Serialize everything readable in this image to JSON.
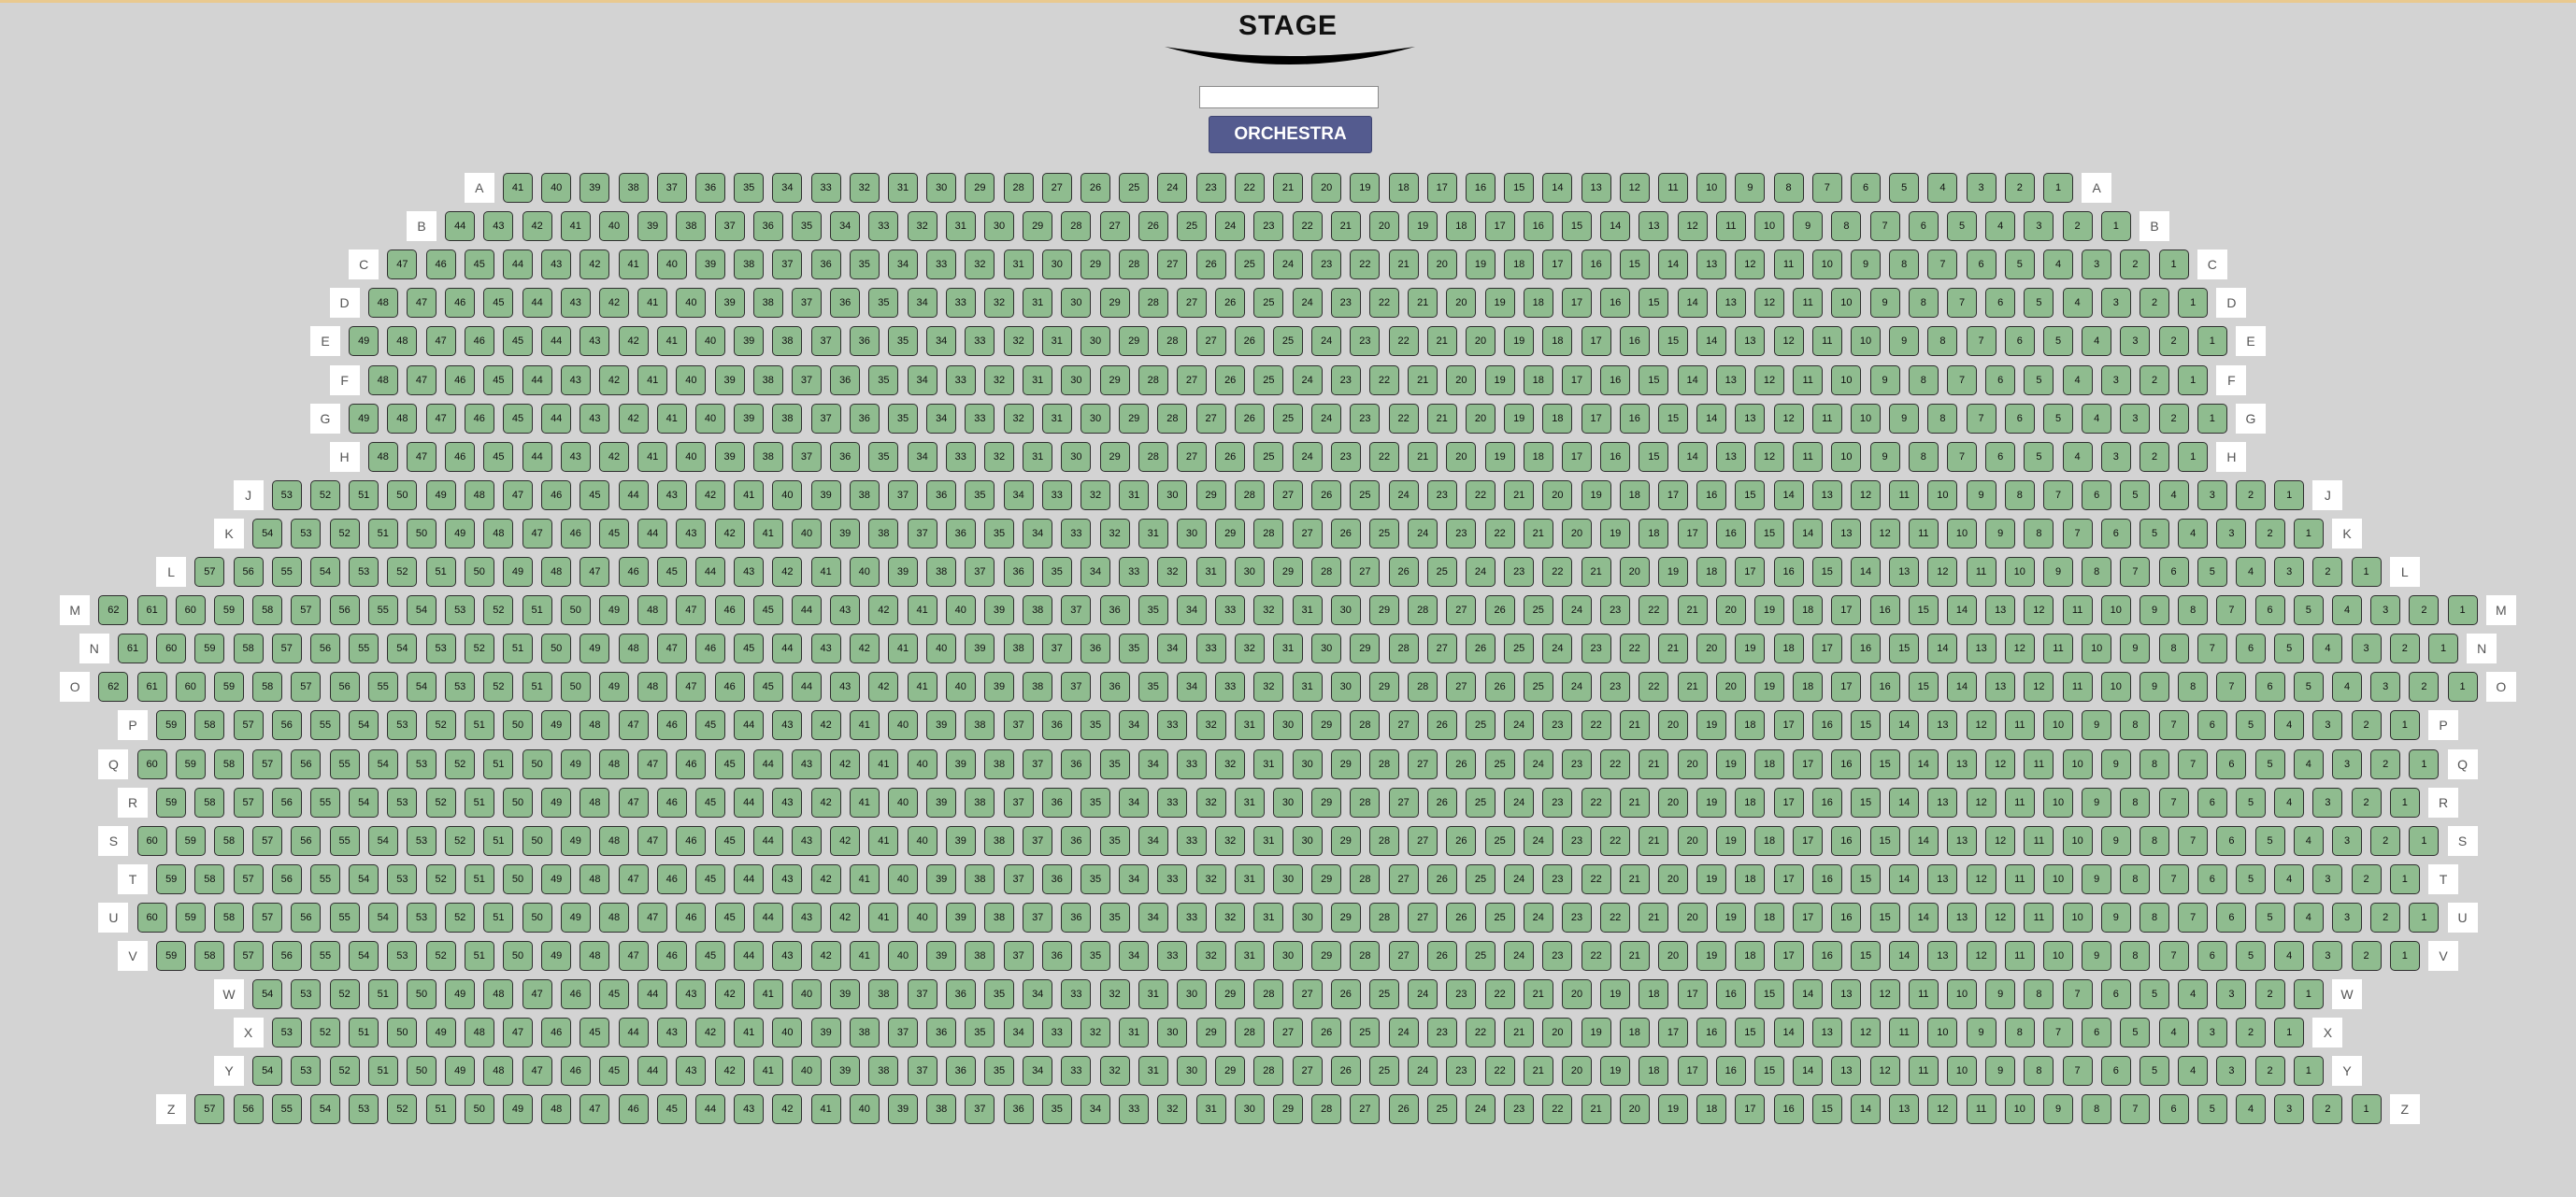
{
  "stage": {
    "label": "STAGE"
  },
  "seat_display": {
    "value": ""
  },
  "section": {
    "label": "ORCHESTRA"
  },
  "colors": {
    "background": "#d3d3d3",
    "seat": "#8fbc8f",
    "section_button": "#545b8f",
    "row_label_bg": "#ffffff"
  },
  "rows": [
    {
      "label": "A",
      "seats": 41
    },
    {
      "label": "B",
      "seats": 44
    },
    {
      "label": "C",
      "seats": 47
    },
    {
      "label": "D",
      "seats": 48
    },
    {
      "label": "E",
      "seats": 49
    },
    {
      "label": "F",
      "seats": 48
    },
    {
      "label": "G",
      "seats": 49
    },
    {
      "label": "H",
      "seats": 48
    },
    {
      "label": "J",
      "seats": 53
    },
    {
      "label": "K",
      "seats": 54
    },
    {
      "label": "L",
      "seats": 57
    },
    {
      "label": "M",
      "seats": 62
    },
    {
      "label": "N",
      "seats": 61
    },
    {
      "label": "O",
      "seats": 62
    },
    {
      "label": "P",
      "seats": 59
    },
    {
      "label": "Q",
      "seats": 60
    },
    {
      "label": "R",
      "seats": 59
    },
    {
      "label": "S",
      "seats": 60
    },
    {
      "label": "T",
      "seats": 59
    },
    {
      "label": "U",
      "seats": 60
    },
    {
      "label": "V",
      "seats": 59
    },
    {
      "label": "W",
      "seats": 54
    },
    {
      "label": "X",
      "seats": 53
    },
    {
      "label": "Y",
      "seats": 54
    },
    {
      "label": "Z",
      "seats": 57
    }
  ]
}
